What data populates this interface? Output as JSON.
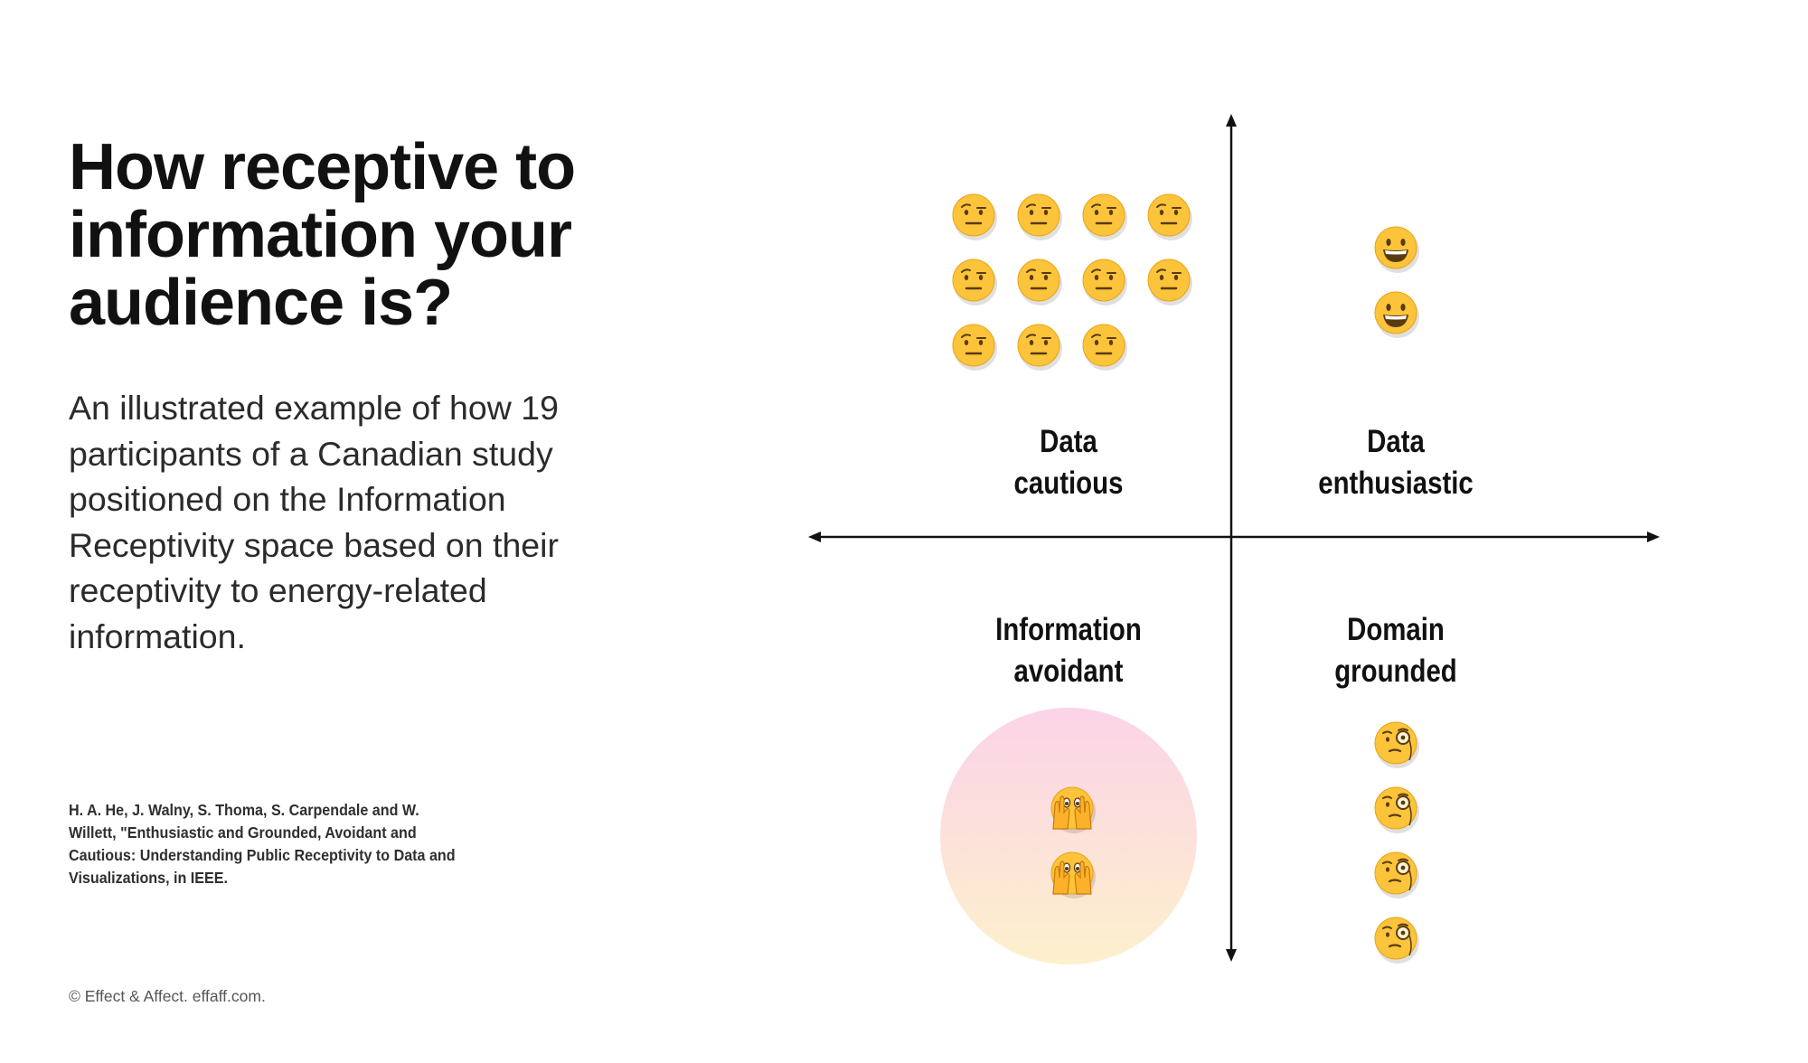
{
  "title": "How receptive to information your audience is?",
  "description": "An illustrated example of how 19 participants of a Canadian study positioned on the Information Receptivity space based on their receptivity to energy-related information.",
  "citation": "H. A. He, J. Walny, S. Thoma, S. Carpendale and W. Willett, \"Enthusiastic and Grounded, Avoidant and Cautious: Understanding Public Receptivity to Data and Visualizations, in IEEE.",
  "copyright": "© Effect & Affect. effaff.com.",
  "quadrants": {
    "top_left": {
      "line1": "Data",
      "line2": "cautious",
      "count": 11,
      "emoji": "raised-eyebrow-face-icon"
    },
    "top_right": {
      "line1": "Data",
      "line2": "enthusiastic",
      "count": 2,
      "emoji": "grinning-face-icon"
    },
    "bottom_left": {
      "line1": "Information",
      "line2": "avoidant",
      "count": 2,
      "emoji": "face-peeking-through-hands-icon",
      "highlight_colors": [
        "#fcd3e8",
        "#fdf0cc"
      ]
    },
    "bottom_right": {
      "line1": "Domain",
      "line2": "grounded",
      "count": 4,
      "emoji": "face-with-monocle-icon"
    }
  },
  "colors": {
    "emoji_face": "#fbc43a",
    "axis": "#111111",
    "text": "#111111"
  }
}
